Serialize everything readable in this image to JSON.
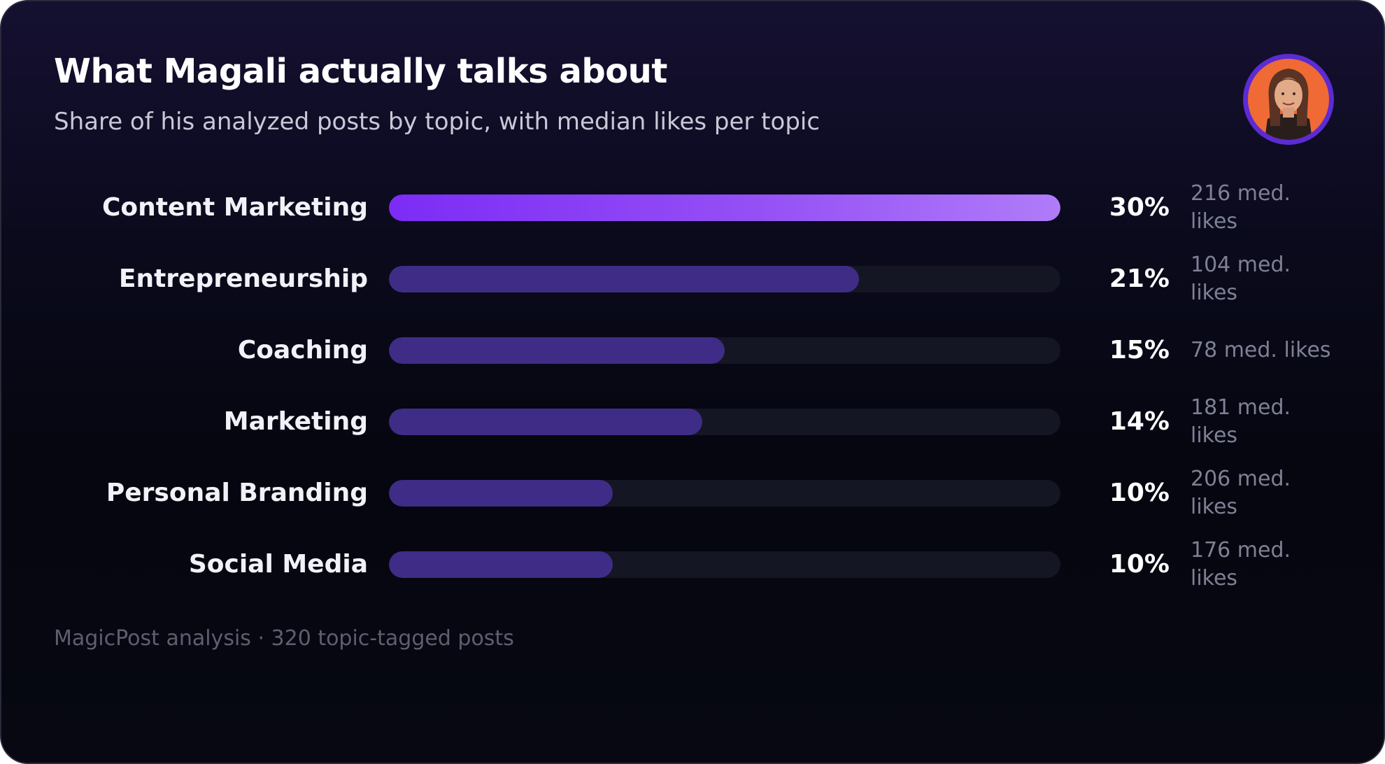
{
  "header": {
    "title": "What Magali actually talks about",
    "subtitle": "Share of his analyzed posts by topic, with median likes per topic"
  },
  "footer": {
    "source": "MagicPost analysis · 320 topic-tagged posts"
  },
  "colors": {
    "highlight_bar_start": "#7c2cf5",
    "highlight_bar_end": "#b07cf9",
    "bar": "#3f2c87",
    "track": "#141624",
    "background": "#05060f",
    "avatar_ring": "#5b2bd3",
    "avatar_background": "#f06a35"
  },
  "chart_data": {
    "type": "bar",
    "orientation": "horizontal",
    "title": "What Magali actually talks about",
    "subtitle": "Share of his analyzed posts by topic, with median likes per topic",
    "categories": [
      "Content Marketing",
      "Entrepreneurship",
      "Coaching",
      "Marketing",
      "Personal Branding",
      "Social Media"
    ],
    "values": [
      30,
      21,
      15,
      14,
      10,
      10
    ],
    "value_labels": [
      "30%",
      "21%",
      "15%",
      "14%",
      "10%",
      "10%"
    ],
    "median_likes_labels": [
      "216 med. likes",
      "104 med. likes",
      "78 med. likes",
      "181 med. likes",
      "206 med. likes",
      "176 med. likes"
    ],
    "median_likes": [
      216,
      104,
      78,
      181,
      206,
      176
    ],
    "xlim": [
      0,
      30
    ],
    "grid": false
  }
}
